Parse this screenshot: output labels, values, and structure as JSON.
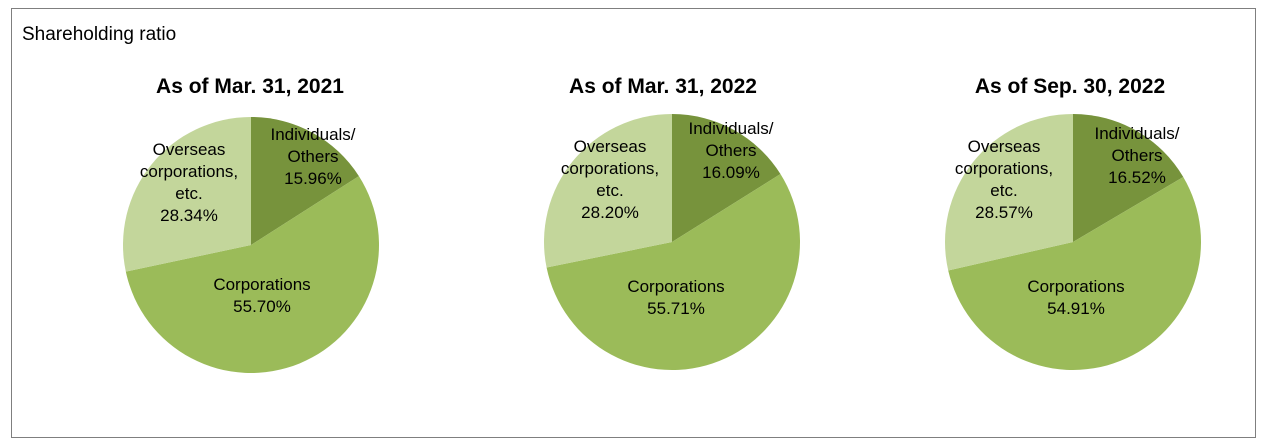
{
  "section_title": "Shareholding ratio",
  "chart_data": [
    {
      "type": "pie",
      "title": "As of Mar. 31, 2021",
      "slices": [
        {
          "label": [
            "Individuals/",
            "Others"
          ],
          "value": 15.96,
          "value_text": "15.96%",
          "color": "#77933c"
        },
        {
          "label": [
            "Corporations"
          ],
          "value": 55.7,
          "value_text": "55.70%",
          "color": "#9bbb59"
        },
        {
          "label": [
            "Overseas",
            "corporations,",
            "etc."
          ],
          "value": 28.34,
          "value_text": "28.34%",
          "color": "#c3d69b"
        }
      ]
    },
    {
      "type": "pie",
      "title": "As of Mar. 31, 2022",
      "slices": [
        {
          "label": [
            "Individuals/",
            "Others"
          ],
          "value": 16.09,
          "value_text": "16.09%",
          "color": "#77933c"
        },
        {
          "label": [
            "Corporations"
          ],
          "value": 55.71,
          "value_text": "55.71%",
          "color": "#9bbb59"
        },
        {
          "label": [
            "Overseas",
            "corporations,",
            "etc."
          ],
          "value": 28.2,
          "value_text": "28.20%",
          "color": "#c3d69b"
        }
      ]
    },
    {
      "type": "pie",
      "title": "As of Sep. 30, 2022",
      "slices": [
        {
          "label": [
            "Individuals/",
            "Others"
          ],
          "value": 16.52,
          "value_text": "16.52%",
          "color": "#77933c"
        },
        {
          "label": [
            "Corporations"
          ],
          "value": 54.91,
          "value_text": "54.91%",
          "color": "#9bbb59"
        },
        {
          "label": [
            "Overseas",
            "corporations,",
            "etc."
          ],
          "value": 28.57,
          "value_text": "28.57%",
          "color": "#c3d69b"
        }
      ]
    }
  ]
}
